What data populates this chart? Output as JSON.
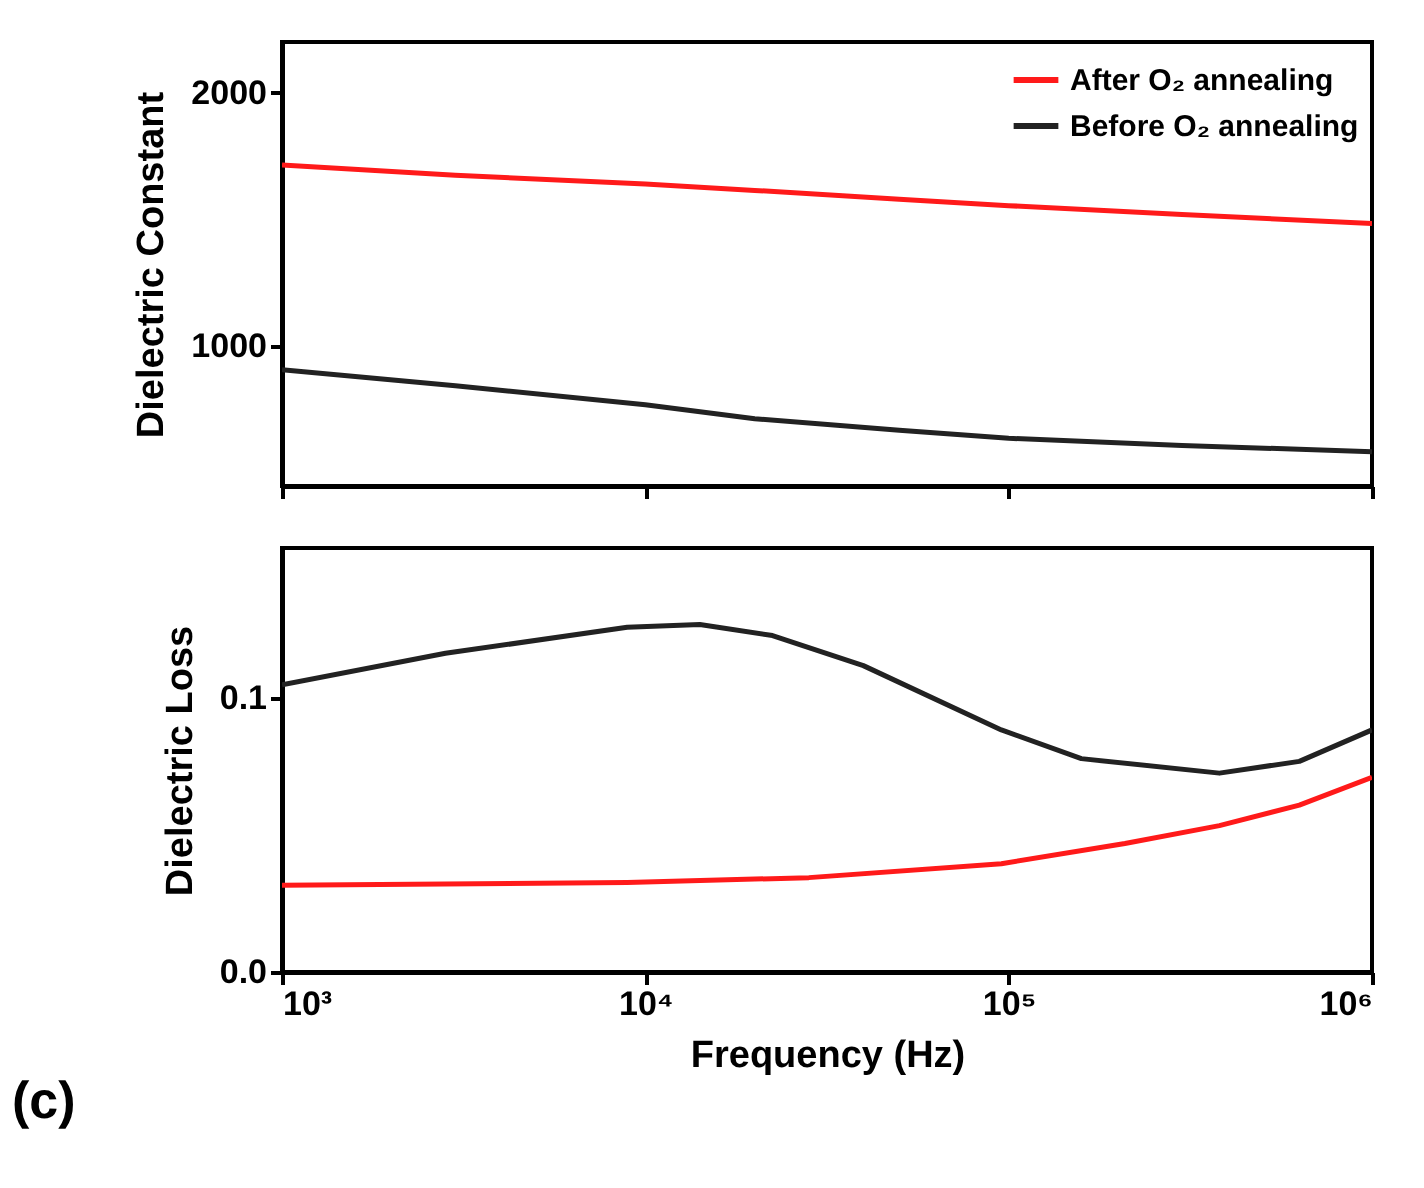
{
  "chart_data": [
    {
      "type": "line",
      "ylabel": "Dielectric Constant",
      "x": [
        1000,
        3000,
        10000,
        20000,
        50000,
        100000,
        300000,
        1000000
      ],
      "xlim": [
        1000,
        1000000
      ],
      "xticks": [
        {
          "value": 1000,
          "label": null
        },
        {
          "value": 10000,
          "label": null
        },
        {
          "value": 100000,
          "label": null
        },
        {
          "value": 1000000,
          "label": null
        }
      ],
      "log": "x",
      "ylim": [
        450,
        2200
      ],
      "yticks": [
        1000,
        2000
      ],
      "tick_labels": "y",
      "grid": false,
      "legend": "top right",
      "line_style": "solid",
      "marker": "none",
      "series": [
        {
          "name": "After O₂ annealing",
          "color": "#ff1a1a",
          "values": [
            1715,
            1675,
            1640,
            1615,
            1580,
            1555,
            1520,
            1485
          ]
        },
        {
          "name": "Before O₂ annealing",
          "color": "#222222",
          "values": [
            908,
            845,
            770,
            715,
            670,
            638,
            610,
            585
          ]
        }
      ]
    },
    {
      "type": "line",
      "xlabel": "Frequency (Hz)",
      "ylabel": "Dielectric Loss",
      "xlim": [
        1000,
        1000000
      ],
      "xticks": [
        {
          "value": 1000,
          "label": "10³"
        },
        {
          "value": 10000,
          "label": "10⁴"
        },
        {
          "value": 100000,
          "label": "10⁵"
        },
        {
          "value": 1000000,
          "label": "10⁶"
        }
      ],
      "log": "x",
      "ylim": [
        0,
        0.155
      ],
      "yticks": [
        {
          "value": 0,
          "label": "0.0"
        },
        0.1
      ],
      "grid": false,
      "legend": false,
      "line_style": "solid",
      "marker": "none",
      "annotations": [
        "(c)"
      ],
      "series": [
        {
          "color": "#222222",
          "x": [
            1000,
            2818,
            8913,
            14125,
            22387,
            39811,
            95499,
            158489,
            380189,
            630957,
            1000000
          ],
          "values": [
            0.105,
            0.1165,
            0.126,
            0.127,
            0.123,
            0.112,
            0.0885,
            0.078,
            0.0727,
            0.077,
            0.0885
          ]
        },
        {
          "color": "#ff1a1a",
          "x": [
            1000,
            8913,
            28184,
            95499,
            208930,
            380189,
            630957,
            1000000
          ],
          "values": [
            0.0317,
            0.0327,
            0.0345,
            0.0396,
            0.047,
            0.0535,
            0.061,
            0.0712
          ]
        }
      ]
    }
  ]
}
